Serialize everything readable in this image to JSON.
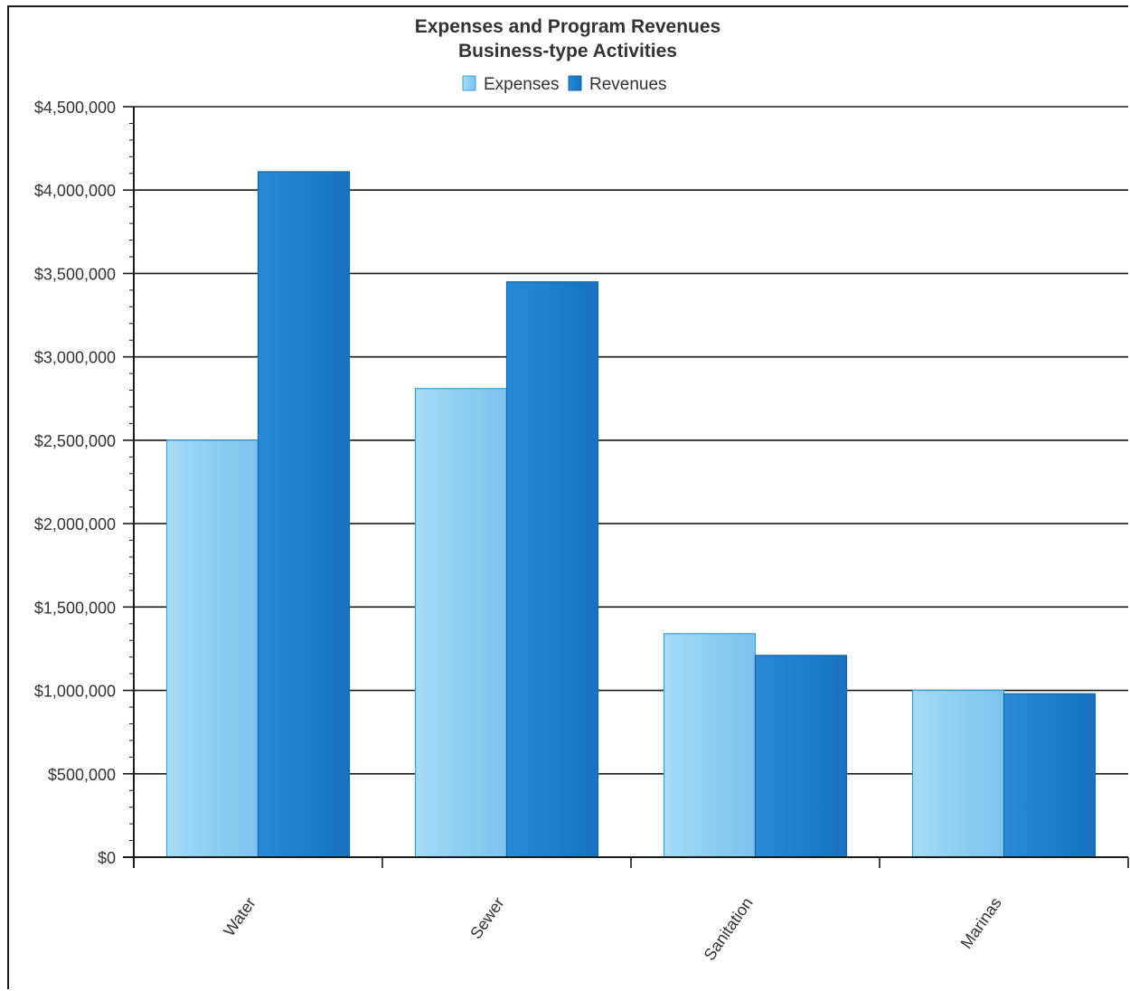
{
  "chart_data": {
    "type": "bar",
    "title": "Expenses and Program Revenues",
    "subtitle": "Business-type Activities",
    "categories": [
      "Water",
      "Sewer",
      "Sanitation",
      "Marinas"
    ],
    "series": [
      {
        "name": "Expenses",
        "values": [
          2500000,
          2810000,
          1340000,
          1000000
        ],
        "color": "#8ccff2"
      },
      {
        "name": "Revenues",
        "values": [
          4110000,
          3450000,
          1210000,
          980000
        ],
        "color": "#1e7fcc"
      }
    ],
    "ylim": [
      0,
      4500000
    ],
    "yticks": [
      0,
      500000,
      1000000,
      1500000,
      2000000,
      2500000,
      3000000,
      3500000,
      4000000,
      4500000
    ],
    "ytick_labels": [
      "$0",
      "$500,000",
      "$1,000,000",
      "$1,500,000",
      "$2,000,000",
      "$2,500,000",
      "$3,000,000",
      "$3,500,000",
      "$4,000,000",
      "$4,500,000"
    ],
    "xlabel": "",
    "ylabel": "",
    "grid": true,
    "legend_position": "top-center"
  }
}
